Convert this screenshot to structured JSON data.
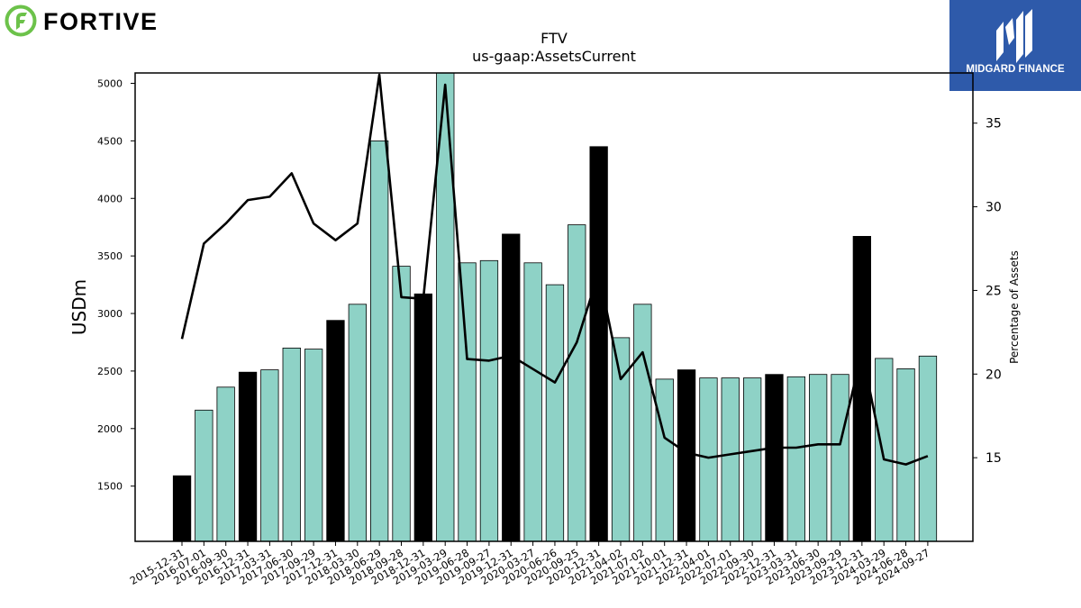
{
  "brand": {
    "company_logo_text": "FORTIVE",
    "publisher_logo_text": "MIDGARD FINANCE",
    "colors": {
      "fortive_green": "#6cc24a",
      "midgard_blue": "#2e5aaa",
      "bar_fill": "#8ed2c6",
      "bar_highlight": "#000000"
    }
  },
  "chart_data": {
    "type": "bar",
    "title": "FTV",
    "subtitle": "us-gaap:AssetsCurrent",
    "ylabel": "USDm",
    "y2label": "Percentage of Assets",
    "ylim": [
      1020,
      5090
    ],
    "y2lim": [
      10,
      38
    ],
    "yticks": [
      1500,
      2000,
      2500,
      3000,
      3500,
      4000,
      4500,
      5000
    ],
    "y2ticks": [
      15,
      20,
      25,
      30,
      35
    ],
    "categories": [
      "2015-12-31",
      "2016-07-01",
      "2016-09-30",
      "2016-12-31",
      "2017-03-31",
      "2017-06-30",
      "2017-09-29",
      "2017-12-31",
      "2018-03-30",
      "2018-06-29",
      "2018-09-28",
      "2018-12-31",
      "2019-03-29",
      "2019-06-28",
      "2019-09-27",
      "2019-12-31",
      "2020-03-27",
      "2020-06-26",
      "2020-09-25",
      "2020-12-31",
      "2021-04-02",
      "2021-07-02",
      "2021-10-01",
      "2021-12-31",
      "2022-04-01",
      "2022-07-01",
      "2022-09-30",
      "2022-12-31",
      "2023-03-31",
      "2023-06-30",
      "2023-09-29",
      "2023-12-31",
      "2024-03-29",
      "2024-06-28",
      "2024-09-27"
    ],
    "series": [
      {
        "kind": "bar",
        "values": [
          1590,
          2160,
          2360,
          2490,
          2510,
          2700,
          2690,
          2940,
          3080,
          4500,
          3410,
          3170,
          5100,
          3440,
          3460,
          3690,
          3440,
          3250,
          3770,
          4450,
          2790,
          3080,
          2430,
          2510,
          2440,
          2440,
          2440,
          2470,
          2450,
          2470,
          2470,
          3670,
          2610,
          2520,
          2630
        ],
        "highlight_year_end": [
          true,
          false,
          false,
          true,
          false,
          false,
          false,
          true,
          false,
          false,
          false,
          true,
          false,
          false,
          false,
          true,
          false,
          false,
          false,
          true,
          false,
          false,
          false,
          true,
          false,
          false,
          false,
          true,
          false,
          false,
          false,
          true,
          false,
          false,
          false
        ]
      },
      {
        "kind": "line",
        "axis": "right",
        "values": [
          22.1,
          27.8,
          29.0,
          30.4,
          30.6,
          32.0,
          29.0,
          28.0,
          29.0,
          37.9,
          24.6,
          24.5,
          37.3,
          20.9,
          20.8,
          21.1,
          20.3,
          19.5,
          21.9,
          26.1,
          19.7,
          21.3,
          16.2,
          15.3,
          15.0,
          15.2,
          15.4,
          15.6,
          15.6,
          15.8,
          15.8,
          21.3,
          14.9,
          14.6,
          15.1
        ]
      }
    ],
    "grid": false
  }
}
